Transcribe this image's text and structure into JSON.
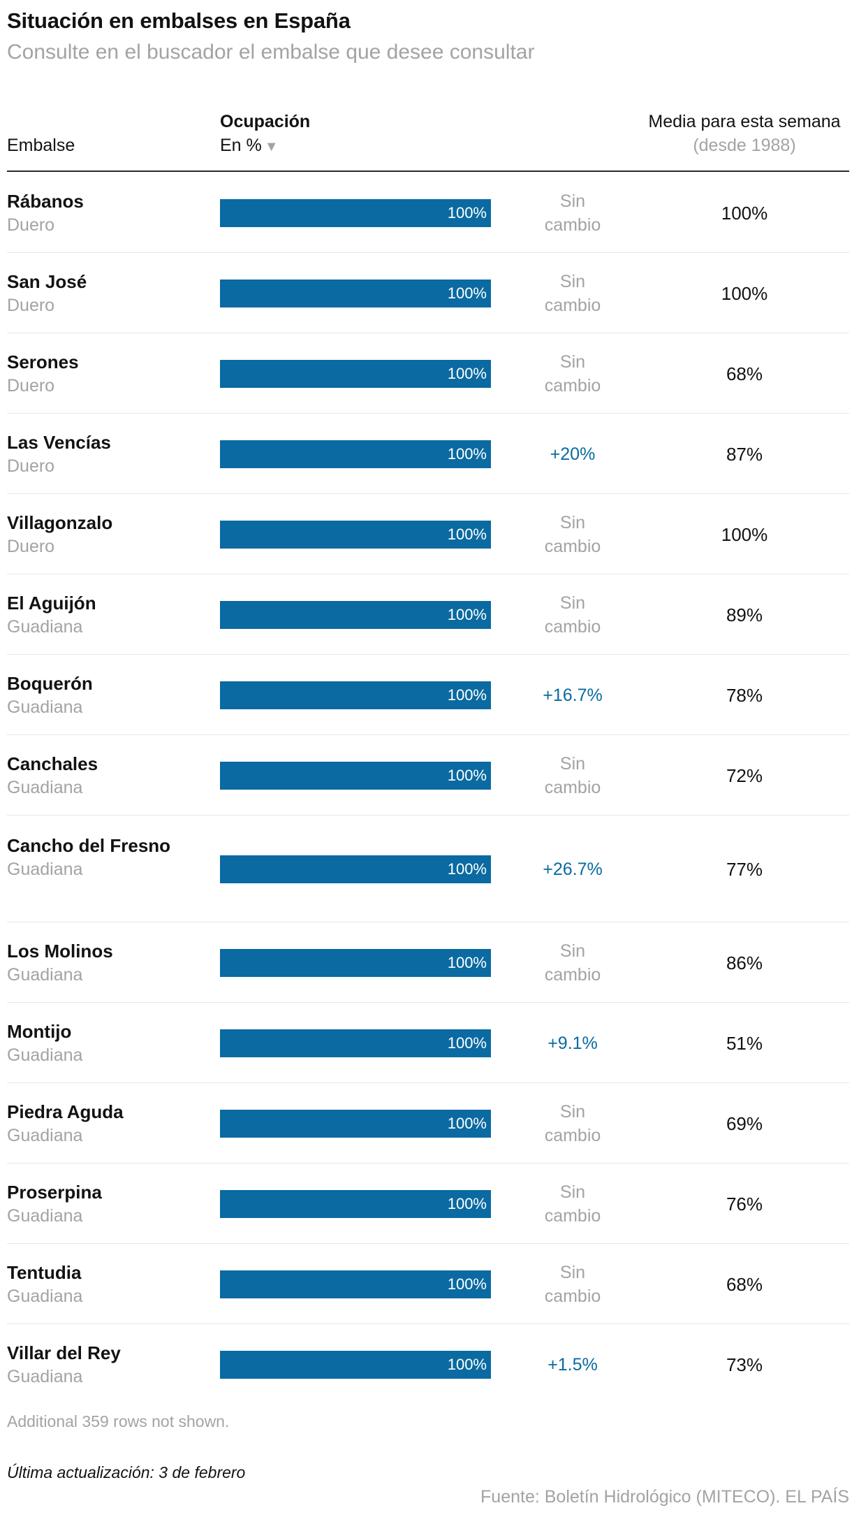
{
  "title": "Situación en embalses en España",
  "subtitle": "Consulte en el buscador el embalse que desee consultar",
  "header": {
    "embalse": "Embalse",
    "ocupacion": "Ocupación",
    "en_pct": "En %",
    "sort_icon": "▼",
    "media": "Media para esta semana",
    "desde": "(desde 1988)"
  },
  "chart_data": {
    "type": "table",
    "columns": [
      "Embalse",
      "Ocupación En %",
      "Cambio",
      "Media para esta semana (desde 1988)"
    ],
    "rows": [
      {
        "name": "Rábanos",
        "basin": "Duero",
        "value": 100,
        "value_label": "100%",
        "change": [
          "Sin",
          "cambio"
        ],
        "change_type": "none",
        "avg": "100%"
      },
      {
        "name": "San José",
        "basin": "Duero",
        "value": 100,
        "value_label": "100%",
        "change": [
          "Sin",
          "cambio"
        ],
        "change_type": "none",
        "avg": "100%"
      },
      {
        "name": "Serones",
        "basin": "Duero",
        "value": 100,
        "value_label": "100%",
        "change": [
          "Sin",
          "cambio"
        ],
        "change_type": "none",
        "avg": "68%"
      },
      {
        "name": "Las Vencías",
        "basin": "Duero",
        "value": 100,
        "value_label": "100%",
        "change": [
          "+20%"
        ],
        "change_type": "up",
        "avg": "87%"
      },
      {
        "name": "Villagonzalo",
        "basin": "Duero",
        "value": 100,
        "value_label": "100%",
        "change": [
          "Sin",
          "cambio"
        ],
        "change_type": "none",
        "avg": "100%"
      },
      {
        "name": "El Aguijón",
        "basin": "Guadiana",
        "value": 100,
        "value_label": "100%",
        "change": [
          "Sin",
          "cambio"
        ],
        "change_type": "none",
        "avg": "89%"
      },
      {
        "name": "Boquerón",
        "basin": "Guadiana",
        "value": 100,
        "value_label": "100%",
        "change": [
          "+16.7%"
        ],
        "change_type": "up",
        "avg": "78%"
      },
      {
        "name": "Canchales",
        "basin": "Guadiana",
        "value": 100,
        "value_label": "100%",
        "change": [
          "Sin",
          "cambio"
        ],
        "change_type": "none",
        "avg": "72%"
      },
      {
        "name": "Cancho del Fresno",
        "basin": "Guadiana",
        "value": 100,
        "value_label": "100%",
        "change": [
          "+26.7%"
        ],
        "change_type": "up",
        "avg": "77%"
      },
      {
        "name": "Los Molinos",
        "basin": "Guadiana",
        "value": 100,
        "value_label": "100%",
        "change": [
          "Sin",
          "cambio"
        ],
        "change_type": "none",
        "avg": "86%"
      },
      {
        "name": "Montijo",
        "basin": "Guadiana",
        "value": 100,
        "value_label": "100%",
        "change": [
          "+9.1%"
        ],
        "change_type": "up",
        "avg": "51%"
      },
      {
        "name": "Piedra Aguda",
        "basin": "Guadiana",
        "value": 100,
        "value_label": "100%",
        "change": [
          "Sin",
          "cambio"
        ],
        "change_type": "none",
        "avg": "69%"
      },
      {
        "name": "Proserpina",
        "basin": "Guadiana",
        "value": 100,
        "value_label": "100%",
        "change": [
          "Sin",
          "cambio"
        ],
        "change_type": "none",
        "avg": "76%"
      },
      {
        "name": "Tentudia",
        "basin": "Guadiana",
        "value": 100,
        "value_label": "100%",
        "change": [
          "Sin",
          "cambio"
        ],
        "change_type": "none",
        "avg": "68%"
      },
      {
        "name": "Villar del Rey",
        "basin": "Guadiana",
        "value": 100,
        "value_label": "100%",
        "change": [
          "+1.5%"
        ],
        "change_type": "up",
        "avg": "73%"
      }
    ],
    "xlim": [
      0,
      100
    ],
    "colors": {
      "bar": "#0a6aa1",
      "change_up": "#0a6aa1",
      "muted": "#a3a3a3"
    }
  },
  "footer": {
    "rows_note": "Additional 359 rows not shown.",
    "updated": "Última actualización: 3 de febrero",
    "source": "Fuente: Boletín Hidrológico (MITECO). EL PAÍS"
  }
}
